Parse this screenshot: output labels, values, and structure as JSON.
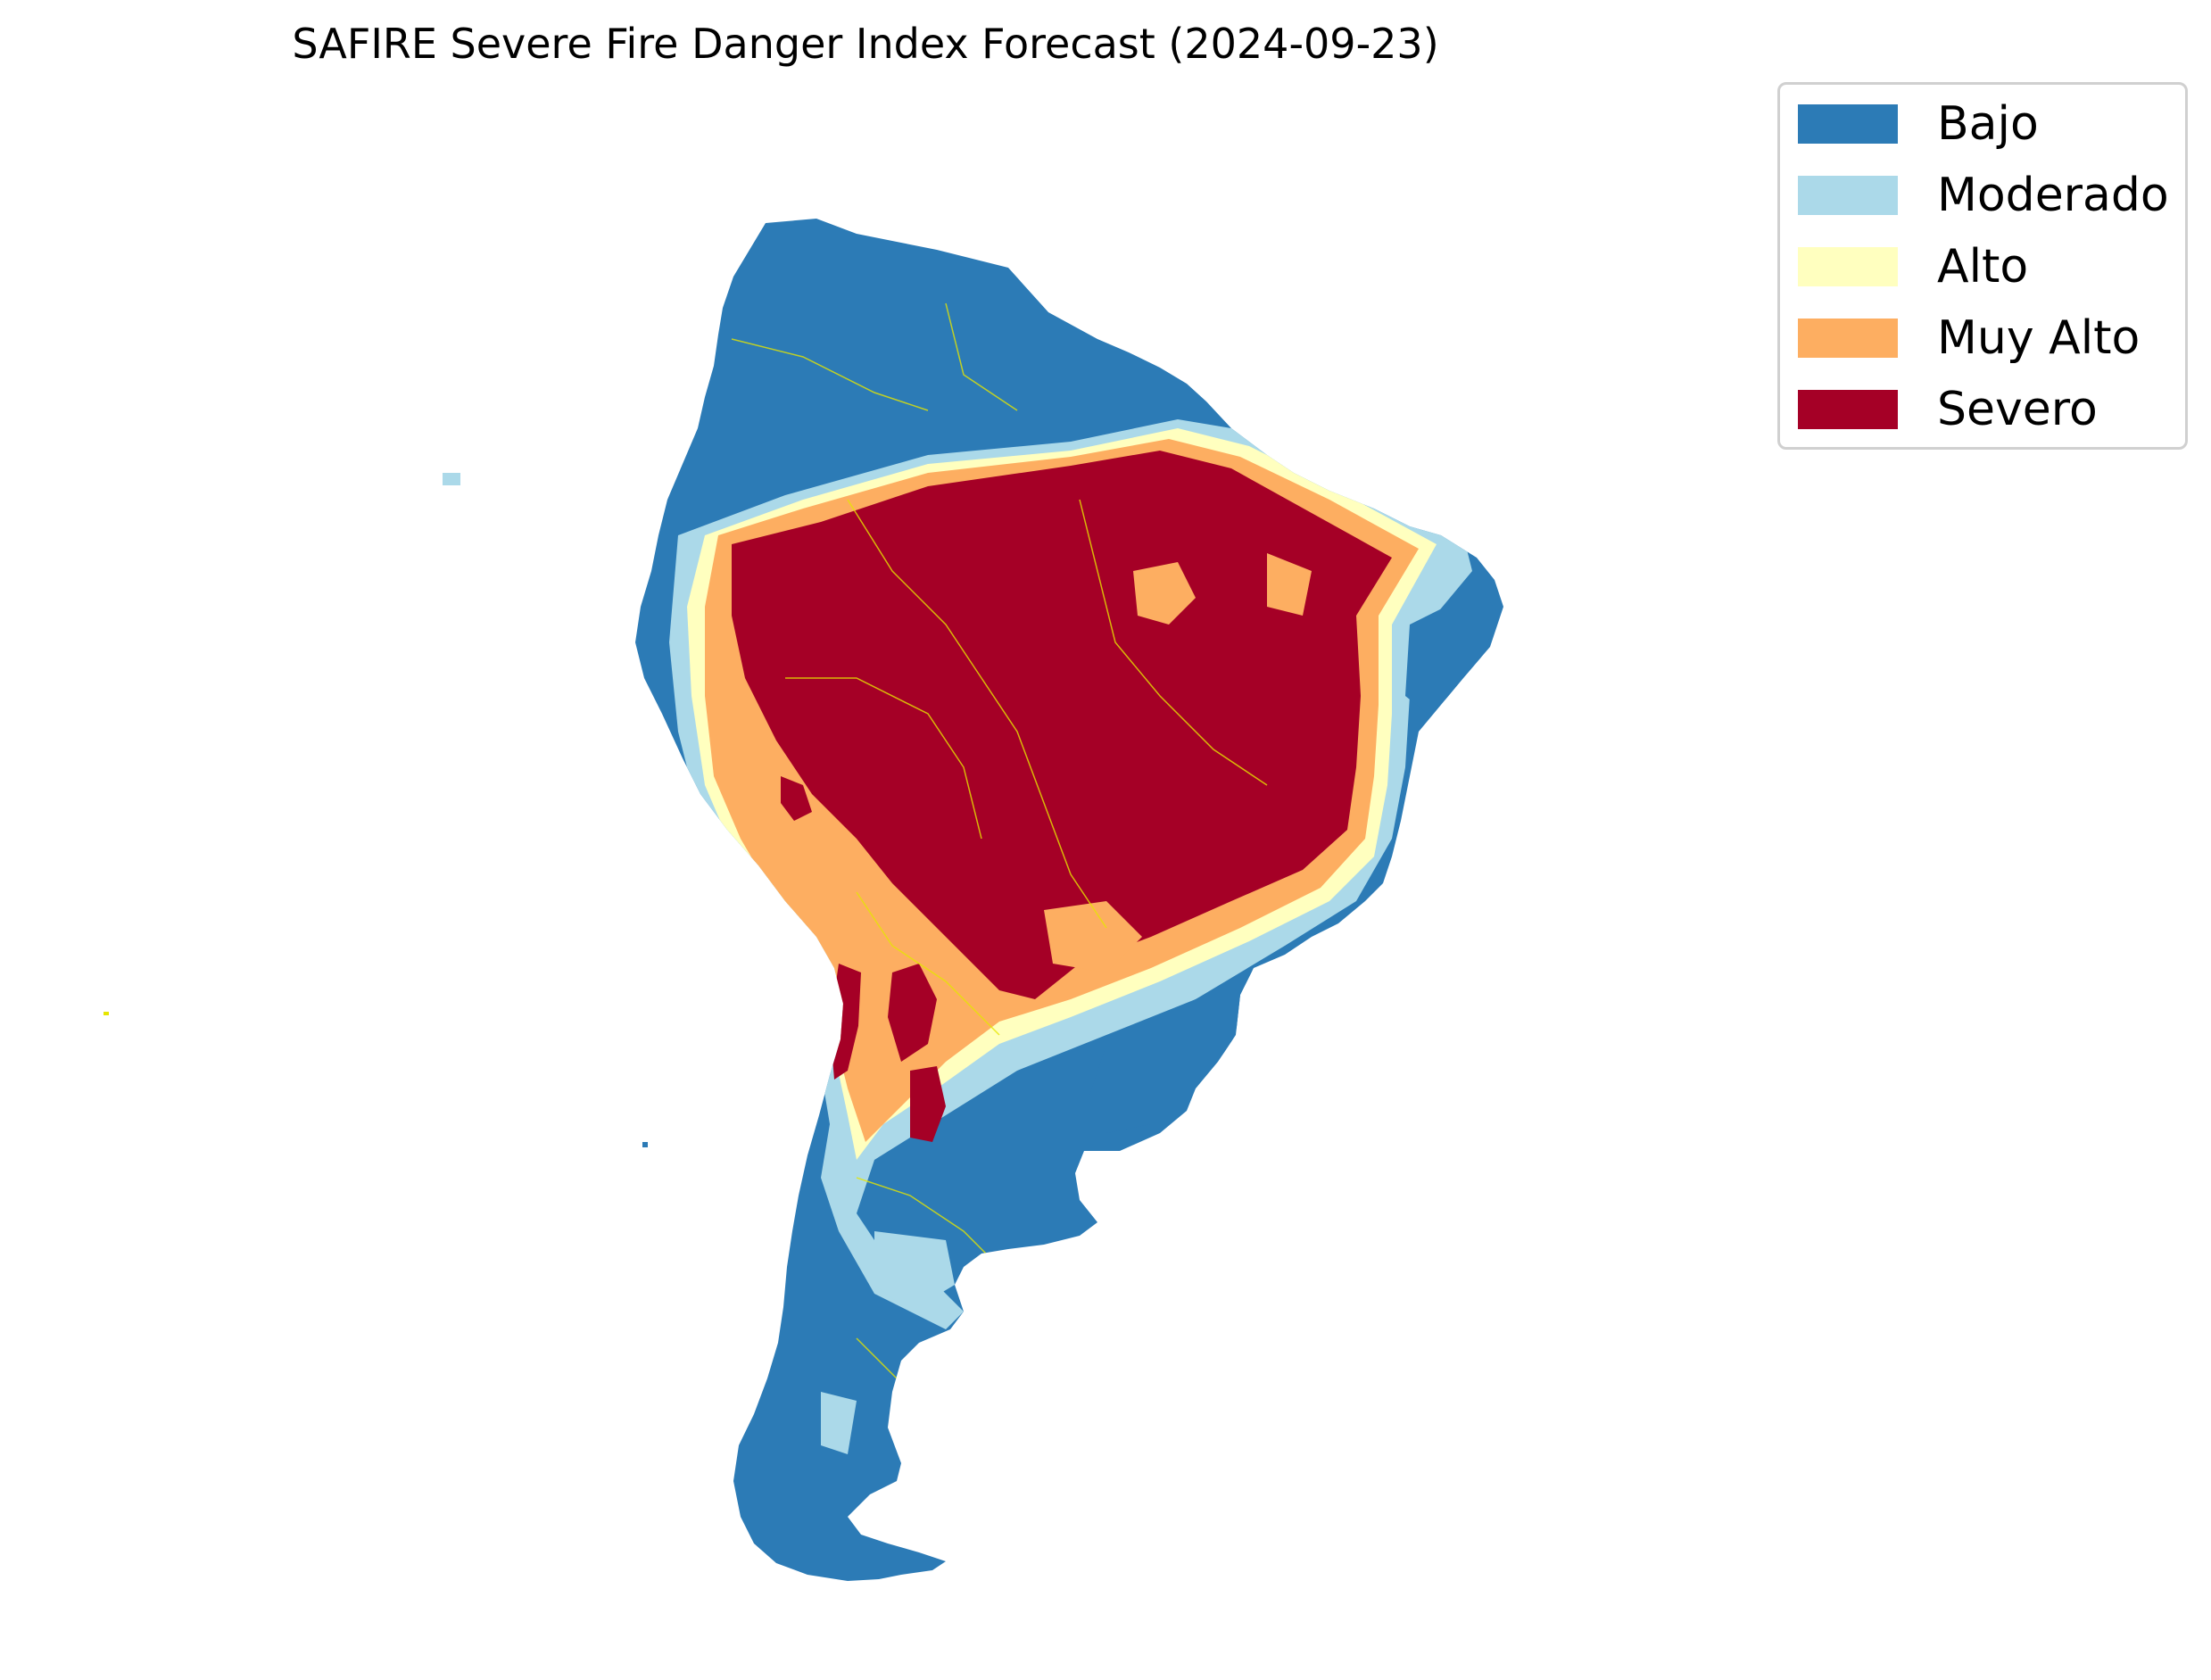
{
  "title": "SAFIRE Severe Fire Danger Index Forecast (2024-09-23)",
  "legend": {
    "placement": "top-right",
    "items": [
      {
        "label": "Bajo",
        "color": "#2c7bb6"
      },
      {
        "label": "Moderado",
        "color": "#abd9e9"
      },
      {
        "label": "Alto",
        "color": "#ffffbf"
      },
      {
        "label": "Muy Alto",
        "color": "#fdae61"
      },
      {
        "label": "Severo",
        "color": "#a50026"
      }
    ]
  },
  "map": {
    "region": "South America",
    "border_color": "#e6e600",
    "categories": [
      "Bajo",
      "Moderado",
      "Alto",
      "Muy Alto",
      "Severo"
    ]
  }
}
